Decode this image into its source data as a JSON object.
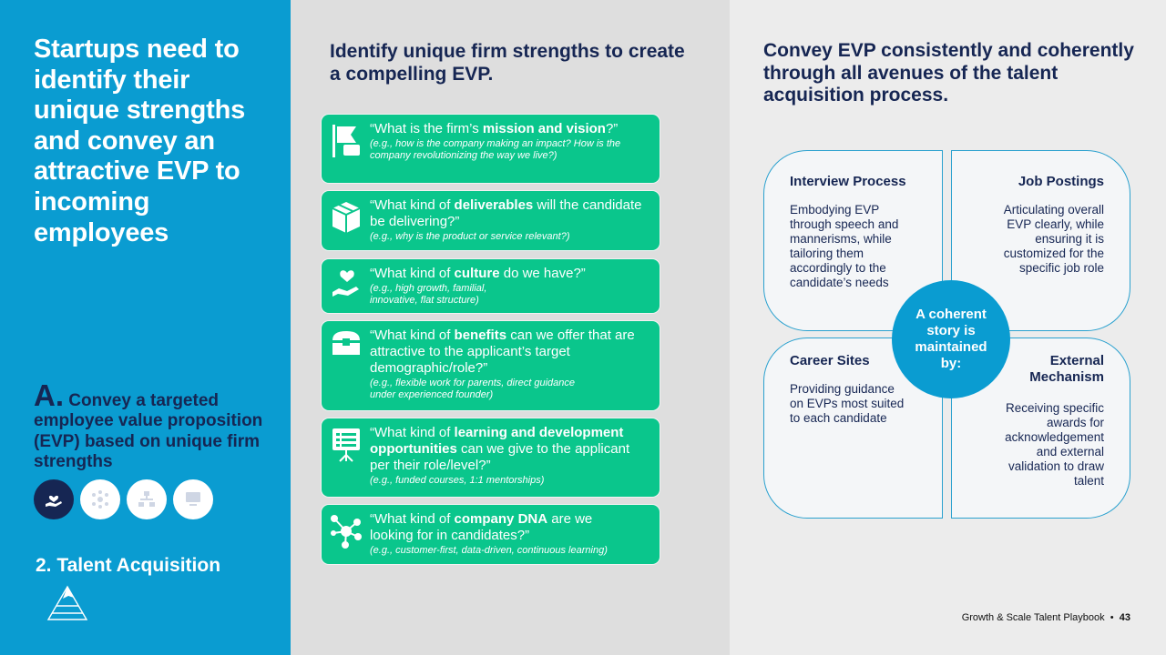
{
  "left": {
    "headline": "Startups need to identify their unique strengths and convey an attractive EVP to incoming employees",
    "sub_letter": "A.",
    "sub_text": "Convey a targeted employee value proposition (EVP) based on unique firm strengths",
    "section": "2. Talent Acquisition"
  },
  "middle": {
    "title": "Identify unique firm strengths to create a compelling EVP.",
    "cards": [
      {
        "q_pre": "“What is the firm’s ",
        "q_bold": "mission and vision",
        "q_post": "?”",
        "example": "(e.g., how is the company making an impact? How is the company revolutionizing the way we live?)"
      },
      {
        "q_pre": "“What kind of ",
        "q_bold": "deliverables",
        "q_post": " will the candidate be delivering?”",
        "example": "(e.g., why is the product or service relevant?)"
      },
      {
        "q_pre": "“What kind of ",
        "q_bold": "culture",
        "q_post": " do we have?”",
        "example": "(e.g., high growth, familial, innovative, flat structure)"
      },
      {
        "q_pre": "“What kind of ",
        "q_bold": "benefits",
        "q_post": " can we offer that are attractive to the applicant’s target demographic/role?”",
        "example": "(e.g., flexible work for parents, direct guidance under experienced founder)"
      },
      {
        "q_pre": "“What kind of ",
        "q_bold": "learning and development opportunities",
        "q_post": " can we give to the applicant per their role/level?”",
        "example": "(e.g., funded courses, 1:1 mentorships)"
      },
      {
        "q_pre": "“What kind of ",
        "q_bold": "company DNA",
        "q_post": " are we looking for in candidates?”",
        "example": "(e.g., customer-first, data-driven, continuous learning)"
      }
    ]
  },
  "right": {
    "title": "Convey EVP consistently and coherently through all avenues of the talent acquisition process.",
    "center": "A coherent story is maintained by:",
    "quadrants": [
      {
        "title": "Interview Process",
        "desc": "Embodying EVP through speech and mannerisms, while tailoring them accordingly to the candidate’s needs"
      },
      {
        "title": "Job Postings",
        "desc": "Articulating overall EVP clearly, while ensuring it is customized for the specific job role"
      },
      {
        "title": "Career Sites",
        "desc": "Providing guidance on EVPs most suited to each candidate"
      },
      {
        "title": "External Mechanism",
        "desc": "Receiving specific awards for acknowledgement and external validation to draw talent"
      }
    ]
  },
  "footer": {
    "text": "Growth & Scale Talent Playbook",
    "separator": "•",
    "page": "43"
  },
  "colors": {
    "blue": "#0a9cd1",
    "navy": "#162653",
    "green": "#0ac68c"
  },
  "icons": [
    "flag-icon",
    "package-icon",
    "heart-hand-icon",
    "treasure-chest-icon",
    "presentation-board-icon",
    "network-dna-icon"
  ]
}
